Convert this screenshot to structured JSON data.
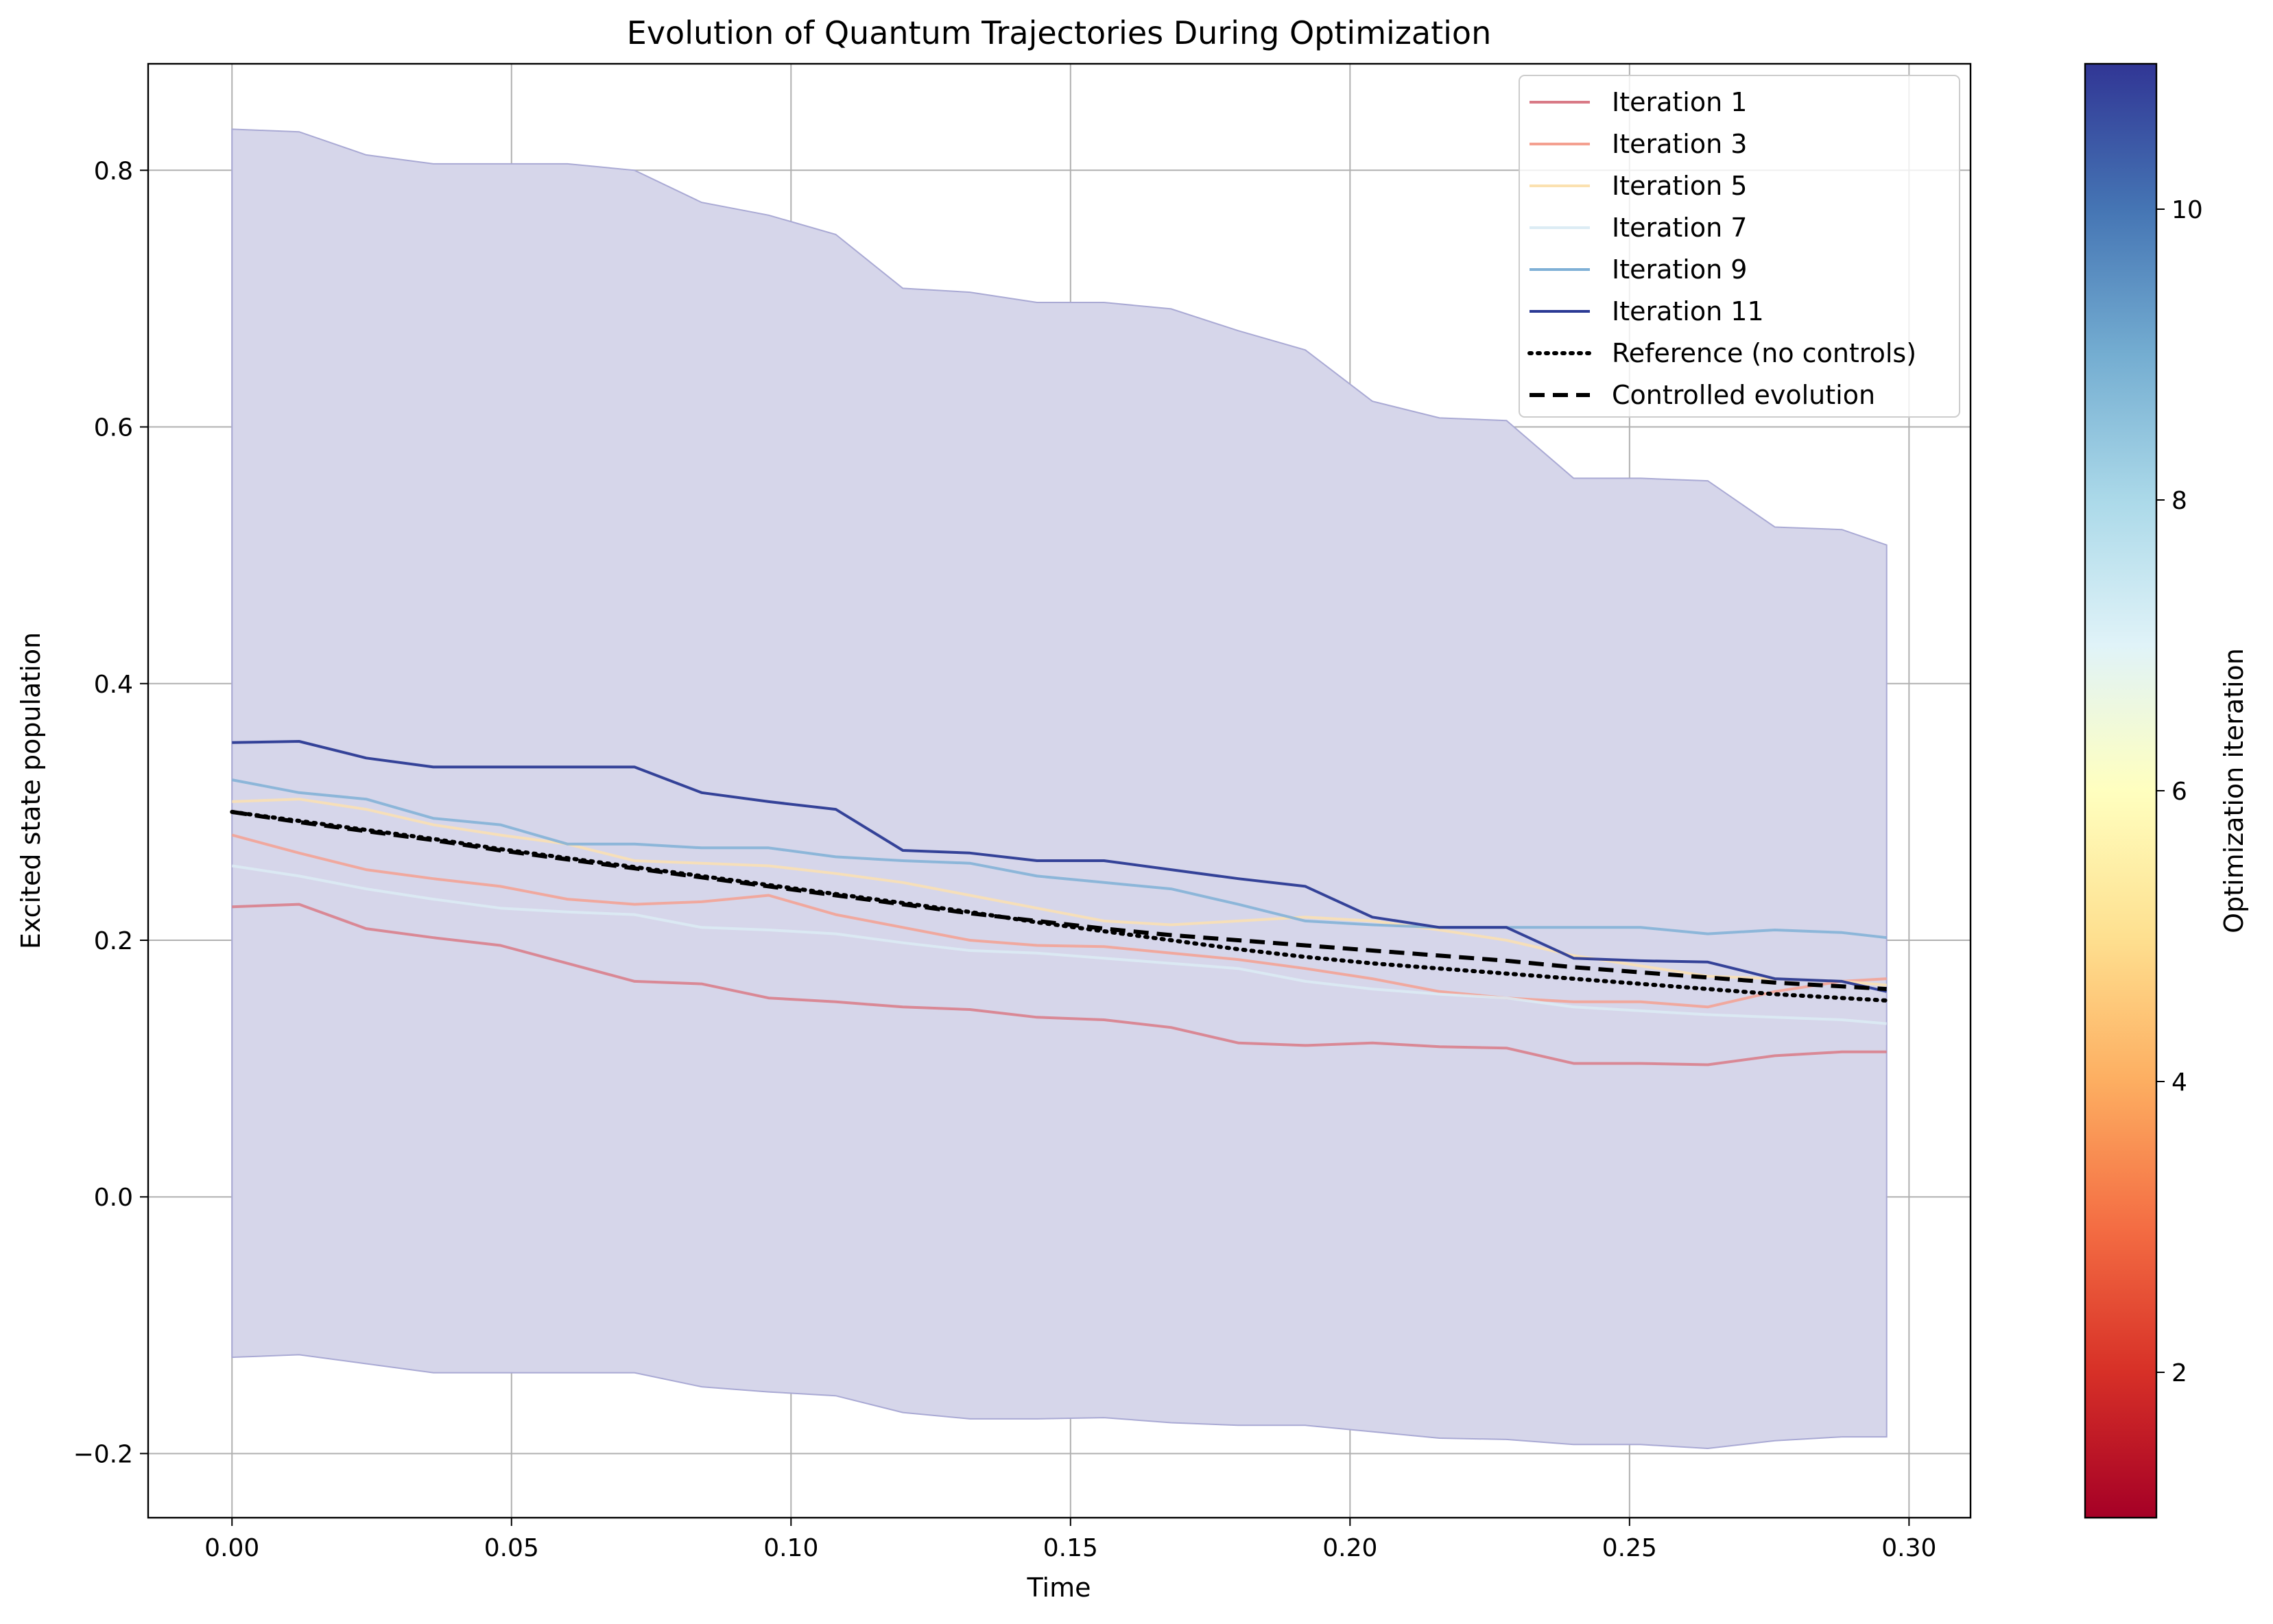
{
  "chart_data": {
    "type": "line",
    "title": "Evolution of Quantum Trajectories During Optimization",
    "xlabel": "Time",
    "ylabel": "Excited state population",
    "xlim": [
      -0.015,
      0.311
    ],
    "ylim": [
      -0.25,
      0.883
    ],
    "x_ticks": [
      "0.00",
      "0.05",
      "0.10",
      "0.15",
      "0.20",
      "0.25",
      "0.30"
    ],
    "y_ticks": [
      "−0.2",
      "0.0",
      "0.2",
      "0.4",
      "0.6",
      "0.8"
    ],
    "grid": true,
    "legend_position": "top-right",
    "x": [
      0.0,
      0.012,
      0.024,
      0.036,
      0.048,
      0.06,
      0.072,
      0.084,
      0.096,
      0.108,
      0.12,
      0.132,
      0.144,
      0.156,
      0.168,
      0.18,
      0.192,
      0.204,
      0.216,
      0.228,
      0.24,
      0.252,
      0.264,
      0.276,
      0.288,
      0.296
    ],
    "band": {
      "upper": [
        0.832,
        0.83,
        0.812,
        0.805,
        0.805,
        0.805,
        0.8,
        0.775,
        0.765,
        0.75,
        0.708,
        0.705,
        0.697,
        0.697,
        0.692,
        0.675,
        0.66,
        0.62,
        0.607,
        0.605,
        0.56,
        0.56,
        0.558,
        0.522,
        0.52,
        0.508
      ],
      "lower": [
        -0.125,
        -0.123,
        -0.13,
        -0.137,
        -0.137,
        -0.137,
        -0.137,
        -0.148,
        -0.152,
        -0.155,
        -0.168,
        -0.173,
        -0.173,
        -0.172,
        -0.176,
        -0.178,
        -0.178,
        -0.183,
        -0.188,
        -0.189,
        -0.193,
        -0.193,
        -0.196,
        -0.19,
        -0.187,
        -0.187
      ],
      "color": "#d6d6ea"
    },
    "series": [
      {
        "name": "Iteration 1",
        "color": "#d97a86",
        "style": "solid",
        "values": [
          0.226,
          0.228,
          0.209,
          0.202,
          0.196,
          0.182,
          0.168,
          0.166,
          0.155,
          0.152,
          0.148,
          0.146,
          0.14,
          0.138,
          0.132,
          0.12,
          0.118,
          0.12,
          0.117,
          0.116,
          0.104,
          0.104,
          0.103,
          0.11,
          0.113,
          0.113
        ]
      },
      {
        "name": "Iteration 3",
        "color": "#f4a090",
        "style": "solid",
        "values": [
          0.282,
          0.268,
          0.255,
          0.248,
          0.242,
          0.232,
          0.228,
          0.23,
          0.235,
          0.22,
          0.21,
          0.2,
          0.196,
          0.195,
          0.19,
          0.185,
          0.178,
          0.17,
          0.16,
          0.155,
          0.152,
          0.152,
          0.148,
          0.16,
          0.168,
          0.17
        ]
      },
      {
        "name": "Iteration 5",
        "color": "#fbe1b0",
        "style": "solid",
        "values": [
          0.308,
          0.31,
          0.302,
          0.29,
          0.282,
          0.275,
          0.262,
          0.26,
          0.258,
          0.252,
          0.245,
          0.235,
          0.225,
          0.215,
          0.212,
          0.215,
          0.218,
          0.215,
          0.208,
          0.2,
          0.188,
          0.18,
          0.172,
          0.17,
          0.168,
          0.165
        ]
      },
      {
        "name": "Iteration 7",
        "color": "#dcecf4",
        "style": "solid",
        "values": [
          0.258,
          0.25,
          0.24,
          0.232,
          0.225,
          0.222,
          0.22,
          0.21,
          0.208,
          0.205,
          0.198,
          0.192,
          0.19,
          0.186,
          0.182,
          0.178,
          0.168,
          0.162,
          0.158,
          0.155,
          0.148,
          0.145,
          0.142,
          0.14,
          0.138,
          0.135
        ]
      },
      {
        "name": "Iteration 9",
        "color": "#7fb0d6",
        "style": "solid",
        "values": [
          0.325,
          0.315,
          0.31,
          0.295,
          0.29,
          0.275,
          0.275,
          0.272,
          0.272,
          0.265,
          0.262,
          0.26,
          0.25,
          0.245,
          0.24,
          0.228,
          0.215,
          0.212,
          0.21,
          0.21,
          0.21,
          0.21,
          0.205,
          0.208,
          0.206,
          0.202
        ]
      },
      {
        "name": "Iteration 11",
        "color": "#2b3a94",
        "style": "solid",
        "values": [
          0.354,
          0.355,
          0.342,
          0.335,
          0.335,
          0.335,
          0.335,
          0.315,
          0.308,
          0.302,
          0.27,
          0.268,
          0.262,
          0.262,
          0.255,
          0.248,
          0.242,
          0.218,
          0.21,
          0.21,
          0.186,
          0.184,
          0.183,
          0.17,
          0.168,
          0.16
        ]
      },
      {
        "name": "Reference (no controls)",
        "color": "#000000",
        "style": "dotted",
        "values": [
          0.3,
          0.293,
          0.286,
          0.279,
          0.271,
          0.264,
          0.257,
          0.25,
          0.243,
          0.236,
          0.229,
          0.222,
          0.214,
          0.207,
          0.2,
          0.193,
          0.187,
          0.182,
          0.178,
          0.174,
          0.17,
          0.166,
          0.162,
          0.158,
          0.155,
          0.153
        ]
      },
      {
        "name": "Controlled evolution",
        "color": "#000000",
        "style": "dashed",
        "values": [
          0.3,
          0.292,
          0.285,
          0.278,
          0.27,
          0.263,
          0.256,
          0.249,
          0.242,
          0.235,
          0.228,
          0.221,
          0.215,
          0.209,
          0.204,
          0.2,
          0.196,
          0.192,
          0.188,
          0.184,
          0.179,
          0.175,
          0.171,
          0.167,
          0.164,
          0.162
        ]
      }
    ],
    "colorbar": {
      "label": "Optimization iteration",
      "range": [
        1,
        11
      ],
      "ticks": [
        "2",
        "4",
        "6",
        "8",
        "10"
      ],
      "tick_values": [
        2,
        4,
        6,
        8,
        10
      ],
      "colormap": [
        "#a50026",
        "#d73027",
        "#f46d43",
        "#fdae61",
        "#fee090",
        "#ffffbf",
        "#e0f3f8",
        "#abd9e9",
        "#74add1",
        "#4575b4",
        "#313695"
      ]
    }
  }
}
